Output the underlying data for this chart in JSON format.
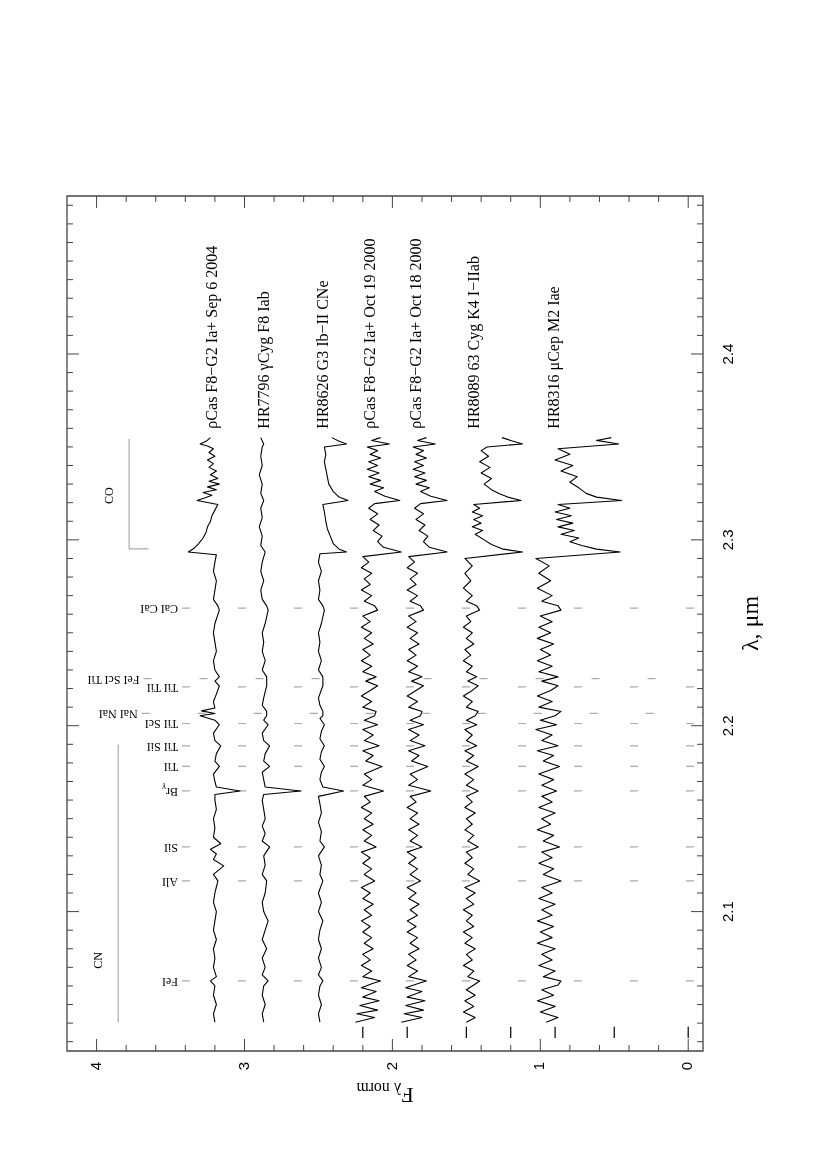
{
  "chart_data": {
    "type": "line",
    "xlabel": "F$_{λ norm}$",
    "ylabel": "λ, μm",
    "xlim": [
      4.2,
      -0.1
    ],
    "ylim": [
      2.025,
      2.485
    ],
    "xticks": [
      0,
      {
        "value": 0.2,
        "label": null
      },
      {
        "value": 0.4,
        "label": null
      },
      {
        "value": 0.6,
        "label": null
      },
      {
        "value": 0.8,
        "label": null
      },
      1,
      {
        "value": 1.2,
        "label": null
      },
      {
        "value": 1.4,
        "label": null
      },
      {
        "value": 1.6,
        "label": null
      },
      {
        "value": 1.8,
        "label": null
      },
      2,
      {
        "value": 2.2,
        "label": null
      },
      {
        "value": 2.4,
        "label": null
      },
      {
        "value": 2.6,
        "label": null
      },
      {
        "value": 2.8,
        "label": null
      },
      3,
      {
        "value": 3.2,
        "label": null
      },
      {
        "value": 3.4,
        "label": null
      },
      {
        "value": 3.6,
        "label": null
      },
      {
        "value": 3.8,
        "label": null
      },
      4
    ],
    "yticks": [
      {
        "value": 2.03,
        "label": null
      },
      {
        "value": 2.04,
        "label": null
      },
      {
        "value": 2.05,
        "label": null
      },
      {
        "value": 2.06,
        "label": null
      },
      {
        "value": 2.07,
        "label": null
      },
      {
        "value": 2.08,
        "label": null
      },
      {
        "value": 2.09,
        "label": null
      },
      2.1,
      {
        "value": 2.11,
        "label": null
      },
      {
        "value": 2.12,
        "label": null
      },
      {
        "value": 2.13,
        "label": null
      },
      {
        "value": 2.14,
        "label": null
      },
      {
        "value": 2.15,
        "label": null
      },
      {
        "value": 2.16,
        "label": null
      },
      {
        "value": 2.17,
        "label": null
      },
      {
        "value": 2.18,
        "label": null
      },
      {
        "value": 2.19,
        "label": null
      },
      2.2,
      {
        "value": 2.21,
        "label": null
      },
      {
        "value": 2.22,
        "label": null
      },
      {
        "value": 2.23,
        "label": null
      },
      {
        "value": 2.24,
        "label": null
      },
      {
        "value": 2.25,
        "label": null
      },
      {
        "value": 2.26,
        "label": null
      },
      {
        "value": 2.27,
        "label": null
      },
      {
        "value": 2.28,
        "label": null
      },
      {
        "value": 2.29,
        "label": null
      },
      2.3,
      {
        "value": 2.31,
        "label": null
      },
      {
        "value": 2.32,
        "label": null
      },
      {
        "value": 2.33,
        "label": null
      },
      {
        "value": 2.34,
        "label": null
      },
      {
        "value": 2.35,
        "label": null
      },
      {
        "value": 2.36,
        "label": null
      },
      {
        "value": 2.37,
        "label": null
      },
      {
        "value": 2.38,
        "label": null
      },
      {
        "value": 2.39,
        "label": null
      },
      2.4,
      {
        "value": 2.41,
        "label": null
      },
      {
        "value": 2.42,
        "label": null
      },
      {
        "value": 2.43,
        "label": null
      },
      {
        "value": 2.44,
        "label": null
      },
      {
        "value": 2.45,
        "label": null
      },
      {
        "value": 2.46,
        "label": null
      },
      {
        "value": 2.47,
        "label": null
      },
      {
        "value": 2.48,
        "label": null
      }
    ],
    "series": [
      {
        "name": "ρCas F8−G2 Ia+ Sep 6 2004",
        "color": "#000000",
        "x": [
          3.2,
          3.21,
          3.19,
          3.21,
          3.2,
          3.23,
          3.19,
          3.21,
          3.2,
          3.21,
          3.19,
          3.21,
          3.2,
          3.19,
          3.21,
          3.2,
          3.18,
          3.21,
          3.14,
          3.21,
          3.19,
          3.23,
          3.16,
          3.21,
          3.2,
          3.21,
          3.19,
          3.2,
          3.2,
          3.03,
          3.19,
          3.2,
          3.21,
          3.17,
          3.2,
          3.19,
          3.16,
          3.2,
          3.21,
          3.17,
          3.2,
          3.3,
          3.2,
          3.29,
          3.2,
          3.21,
          3.19,
          3.17,
          3.2,
          3.17,
          3.2,
          3.21,
          3.19,
          3.2,
          3.21,
          3.2,
          3.17,
          3.18,
          3.21,
          3.2,
          3.19,
          3.21,
          3.2,
          3.19,
          3.38,
          3.34,
          3.31,
          3.28,
          3.26,
          3.25,
          3.23,
          3.22,
          3.2,
          3.18,
          3.32,
          3.27,
          3.22,
          3.28,
          3.19,
          3.25,
          3.17,
          3.24,
          3.18,
          3.23,
          3.19,
          3.24,
          3.21,
          3.25,
          3.2,
          3.24,
          3.21,
          3.25,
          3.3,
          3.26,
          3.23
        ],
        "values": [
          2.0405,
          2.045,
          2.05,
          2.055,
          2.06,
          2.0627,
          2.065,
          2.07,
          2.075,
          2.08,
          2.085,
          2.09,
          2.095,
          2.1,
          2.105,
          2.11,
          2.1165,
          2.12,
          2.1246,
          2.128,
          2.131,
          2.1335,
          2.1365,
          2.14,
          2.145,
          2.15,
          2.155,
          2.16,
          2.163,
          2.1649,
          2.167,
          2.17,
          2.174,
          2.1781,
          2.181,
          2.185,
          2.1892,
          2.192,
          2.196,
          2.2005,
          2.203,
          2.2054,
          2.2066,
          2.208,
          2.2095,
          2.213,
          2.217,
          2.2215,
          2.224,
          2.2263,
          2.23,
          2.235,
          2.24,
          2.245,
          2.25,
          2.255,
          2.2622,
          2.2645,
          2.268,
          2.273,
          2.278,
          2.283,
          2.288,
          2.292,
          2.2935,
          2.2955,
          2.298,
          2.301,
          2.304,
          2.307,
          2.31,
          2.313,
          2.316,
          2.319,
          2.3212,
          2.3225,
          2.324,
          2.3255,
          2.327,
          2.3285,
          2.33,
          2.3315,
          2.333,
          2.335,
          2.337,
          2.339,
          2.341,
          2.343,
          2.345,
          2.347,
          2.349,
          2.3505,
          2.3516,
          2.353,
          2.355
        ]
      },
      {
        "name": "HR7796 γCyg F8 Iab",
        "color": "#000000",
        "x": [
          2.87,
          2.88,
          2.86,
          2.88,
          2.87,
          2.84,
          2.88,
          2.86,
          2.88,
          2.85,
          2.88,
          2.86,
          2.84,
          2.87,
          2.88,
          2.86,
          2.85,
          2.88,
          2.86,
          2.87,
          2.83,
          2.88,
          2.86,
          2.88,
          2.86,
          2.87,
          2.88,
          2.87,
          2.62,
          2.86,
          2.87,
          2.88,
          2.83,
          2.87,
          2.86,
          2.83,
          2.87,
          2.88,
          2.84,
          2.87,
          2.85,
          2.85,
          2.88,
          2.87,
          2.85,
          2.85,
          2.88,
          2.86,
          2.88,
          2.87,
          2.88,
          2.86,
          2.84,
          2.85,
          2.88,
          2.89,
          2.87,
          2.89,
          2.88,
          2.86,
          2.89,
          2.88,
          2.9,
          2.88,
          2.89,
          2.87,
          2.89,
          2.88,
          2.9,
          2.88,
          2.89,
          2.88,
          2.87,
          2.89
        ],
        "values": [
          2.0405,
          2.045,
          2.05,
          2.055,
          2.06,
          2.0627,
          2.066,
          2.07,
          2.075,
          2.08,
          2.085,
          2.09,
          2.095,
          2.1,
          2.105,
          2.11,
          2.1165,
          2.12,
          2.125,
          2.13,
          2.1348,
          2.138,
          2.142,
          2.146,
          2.15,
          2.155,
          2.16,
          2.163,
          2.1649,
          2.167,
          2.171,
          2.175,
          2.1781,
          2.181,
          2.185,
          2.1892,
          2.192,
          2.196,
          2.2005,
          2.203,
          2.2054,
          2.2077,
          2.211,
          2.215,
          2.2215,
          2.2263,
          2.23,
          2.235,
          2.24,
          2.245,
          2.25,
          2.255,
          2.2622,
          2.2645,
          2.268,
          2.273,
          2.278,
          2.283,
          2.288,
          2.2935,
          2.297,
          2.302,
          2.307,
          2.312,
          2.317,
          2.3212,
          2.325,
          2.33,
          2.335,
          2.34,
          2.345,
          2.35,
          2.3516,
          2.355
        ]
      },
      {
        "name": "HR8626 G3 Ib−II CNe",
        "color": "#000000",
        "x": [
          2.49,
          2.5,
          2.48,
          2.5,
          2.49,
          2.47,
          2.5,
          2.48,
          2.5,
          2.48,
          2.5,
          2.49,
          2.47,
          2.5,
          2.48,
          2.5,
          2.47,
          2.49,
          2.48,
          2.5,
          2.46,
          2.49,
          2.48,
          2.5,
          2.48,
          2.49,
          2.5,
          2.33,
          2.47,
          2.49,
          2.48,
          2.46,
          2.49,
          2.48,
          2.46,
          2.49,
          2.48,
          2.46,
          2.49,
          2.47,
          2.47,
          2.49,
          2.5,
          2.47,
          2.47,
          2.5,
          2.48,
          2.5,
          2.49,
          2.5,
          2.48,
          2.46,
          2.47,
          2.5,
          2.49,
          2.5,
          2.48,
          2.5,
          2.49,
          2.31,
          2.36,
          2.4,
          2.42,
          2.44,
          2.45,
          2.46,
          2.47,
          2.3,
          2.36,
          2.4,
          2.43,
          2.44,
          2.45,
          2.46,
          2.45,
          2.46,
          2.31,
          2.36,
          2.41
        ],
        "values": [
          2.0405,
          2.045,
          2.05,
          2.055,
          2.06,
          2.0627,
          2.066,
          2.07,
          2.075,
          2.08,
          2.085,
          2.09,
          2.095,
          2.1,
          2.105,
          2.11,
          2.1165,
          2.12,
          2.125,
          2.13,
          2.1348,
          2.138,
          2.143,
          2.148,
          2.153,
          2.158,
          2.162,
          2.1649,
          2.167,
          2.171,
          2.175,
          2.1781,
          2.182,
          2.186,
          2.1892,
          2.193,
          2.197,
          2.2005,
          2.204,
          2.2054,
          2.2077,
          2.211,
          2.215,
          2.2215,
          2.2263,
          2.23,
          2.235,
          2.24,
          2.245,
          2.25,
          2.255,
          2.2622,
          2.2645,
          2.268,
          2.273,
          2.278,
          2.283,
          2.288,
          2.2925,
          2.2935,
          2.295,
          2.298,
          2.302,
          2.306,
          2.31,
          2.315,
          2.319,
          2.3212,
          2.323,
          2.326,
          2.33,
          2.334,
          2.338,
          2.342,
          2.346,
          2.35,
          2.3516,
          2.353,
          2.355
        ]
      },
      {
        "name": "ρCas F8−G2 Ia+ Oct 19 2000",
        "color": "#000000",
        "x": [
          2.25,
          2.12,
          2.24,
          2.1,
          2.22,
          2.09,
          2.2,
          2.11,
          2.21,
          2.13,
          2.08,
          2.2,
          2.14,
          2.21,
          2.15,
          2.2,
          2.13,
          2.19,
          2.14,
          2.2,
          2.15,
          2.21,
          2.14,
          2.19,
          2.13,
          2.2,
          2.15,
          2.21,
          2.12,
          2.19,
          2.14,
          2.2,
          2.15,
          2.21,
          2.11,
          2.19,
          2.14,
          2.2,
          2.13,
          2.19,
          2.14,
          2.21,
          2.15,
          2.19,
          2.06,
          2.2,
          2.14,
          2.19,
          2.07,
          2.18,
          2.13,
          2.2,
          2.09,
          2.19,
          2.13,
          2.2,
          2.1,
          2.19,
          2.12,
          2.11,
          2.2,
          2.14,
          2.21,
          2.15,
          2.1,
          2.18,
          2.11,
          2.2,
          2.14,
          2.21,
          2.15,
          2.2,
          2.13,
          2.19,
          2.14,
          2.21,
          2.15,
          2.2,
          2.1,
          2.12,
          2.19,
          2.14,
          2.21,
          2.15,
          2.19,
          2.14,
          2.21,
          2.16,
          2.2,
          1.94,
          2.06,
          2.1,
          2.07,
          2.13,
          2.09,
          2.15,
          2.1,
          2.16,
          2.12,
          1.95,
          2.05,
          2.12,
          2.06,
          2.15,
          2.08,
          2.16,
          2.09,
          2.17,
          2.1,
          2.16,
          2.08,
          2.15,
          2.1,
          2.17,
          2.02,
          2.14,
          2.08
        ],
        "values": [
          2.0405,
          2.043,
          2.045,
          2.047,
          2.0495,
          2.052,
          2.054,
          2.057,
          2.059,
          2.0615,
          2.0627,
          2.065,
          2.068,
          2.071,
          2.074,
          2.077,
          2.08,
          2.083,
          2.086,
          2.089,
          2.092,
          2.095,
          2.098,
          2.101,
          2.104,
          2.107,
          2.11,
          2.113,
          2.1165,
          2.12,
          2.123,
          2.126,
          2.129,
          2.132,
          2.1348,
          2.138,
          2.141,
          2.144,
          2.147,
          2.15,
          2.153,
          2.156,
          2.159,
          2.162,
          2.1649,
          2.168,
          2.171,
          2.174,
          2.1781,
          2.181,
          2.184,
          2.1865,
          2.1892,
          2.192,
          2.195,
          2.198,
          2.2005,
          2.203,
          2.2054,
          2.2077,
          2.21,
          2.213,
          2.216,
          2.219,
          2.2215,
          2.224,
          2.2263,
          2.229,
          2.232,
          2.235,
          2.238,
          2.241,
          2.244,
          2.247,
          2.25,
          2.253,
          2.256,
          2.259,
          2.2622,
          2.2645,
          2.267,
          2.27,
          2.273,
          2.276,
          2.279,
          2.282,
          2.285,
          2.288,
          2.291,
          2.2935,
          2.296,
          2.299,
          2.302,
          2.305,
          2.308,
          2.311,
          2.314,
          2.317,
          2.3195,
          2.3212,
          2.3235,
          2.326,
          2.328,
          2.33,
          2.332,
          2.334,
          2.336,
          2.338,
          2.34,
          2.342,
          2.344,
          2.346,
          2.348,
          2.35,
          2.3516,
          2.3535,
          2.355
        ]
      },
      {
        "name": "ρCas F8−G2 Ia+ Oct 18 2000",
        "color": "#000000",
        "x": [
          1.94,
          1.8,
          1.92,
          1.79,
          1.91,
          1.78,
          1.9,
          1.8,
          1.91,
          1.82,
          1.77,
          1.89,
          1.83,
          1.9,
          1.84,
          1.89,
          1.82,
          1.88,
          1.83,
          1.9,
          1.84,
          1.9,
          1.83,
          1.88,
          1.82,
          1.89,
          1.84,
          1.9,
          1.81,
          1.88,
          1.83,
          1.89,
          1.84,
          1.9,
          1.8,
          1.88,
          1.83,
          1.89,
          1.82,
          1.88,
          1.83,
          1.9,
          1.84,
          1.88,
          1.74,
          1.89,
          1.83,
          1.88,
          1.76,
          1.87,
          1.82,
          1.89,
          1.78,
          1.88,
          1.82,
          1.89,
          1.79,
          1.88,
          1.81,
          1.8,
          1.89,
          1.83,
          1.9,
          1.84,
          1.79,
          1.87,
          1.8,
          1.89,
          1.83,
          1.9,
          1.84,
          1.89,
          1.82,
          1.88,
          1.83,
          1.9,
          1.84,
          1.89,
          1.79,
          1.81,
          1.88,
          1.83,
          1.9,
          1.84,
          1.88,
          1.83,
          1.9,
          1.85,
          1.89,
          1.63,
          1.75,
          1.79,
          1.76,
          1.82,
          1.78,
          1.84,
          1.79,
          1.85,
          1.81,
          1.63,
          1.74,
          1.81,
          1.75,
          1.84,
          1.77,
          1.85,
          1.78,
          1.86,
          1.79,
          1.85,
          1.77,
          1.84,
          1.79,
          1.86,
          1.71,
          1.83,
          1.77
        ],
        "values": [
          2.0405,
          2.043,
          2.045,
          2.047,
          2.0495,
          2.052,
          2.054,
          2.057,
          2.059,
          2.0615,
          2.0627,
          2.065,
          2.068,
          2.071,
          2.074,
          2.077,
          2.08,
          2.083,
          2.086,
          2.089,
          2.092,
          2.095,
          2.098,
          2.101,
          2.104,
          2.107,
          2.11,
          2.113,
          2.1165,
          2.12,
          2.123,
          2.126,
          2.129,
          2.132,
          2.1348,
          2.138,
          2.141,
          2.144,
          2.147,
          2.15,
          2.153,
          2.156,
          2.159,
          2.162,
          2.1649,
          2.168,
          2.171,
          2.174,
          2.1781,
          2.181,
          2.184,
          2.1865,
          2.1892,
          2.192,
          2.195,
          2.198,
          2.2005,
          2.203,
          2.2054,
          2.2077,
          2.21,
          2.213,
          2.216,
          2.219,
          2.2215,
          2.224,
          2.2263,
          2.229,
          2.232,
          2.235,
          2.238,
          2.241,
          2.244,
          2.247,
          2.25,
          2.253,
          2.256,
          2.259,
          2.2622,
          2.2645,
          2.267,
          2.27,
          2.273,
          2.276,
          2.279,
          2.282,
          2.285,
          2.288,
          2.291,
          2.2935,
          2.296,
          2.299,
          2.302,
          2.305,
          2.308,
          2.311,
          2.314,
          2.317,
          2.3195,
          2.3212,
          2.3235,
          2.326,
          2.328,
          2.33,
          2.332,
          2.334,
          2.336,
          2.338,
          2.34,
          2.342,
          2.344,
          2.346,
          2.348,
          2.35,
          2.3516,
          2.3535,
          2.355
        ]
      },
      {
        "name": "HR8089 63 Cyg K4 I−IIab",
        "color": "#000000",
        "x": [
          1.5,
          1.44,
          1.52,
          1.45,
          1.51,
          1.44,
          1.5,
          1.45,
          1.41,
          1.49,
          1.45,
          1.52,
          1.46,
          1.5,
          1.44,
          1.51,
          1.46,
          1.52,
          1.45,
          1.5,
          1.46,
          1.52,
          1.45,
          1.5,
          1.44,
          1.51,
          1.41,
          1.49,
          1.45,
          1.51,
          1.46,
          1.5,
          1.42,
          1.49,
          1.45,
          1.51,
          1.46,
          1.5,
          1.44,
          1.51,
          1.46,
          1.5,
          1.42,
          1.5,
          1.45,
          1.51,
          1.42,
          1.5,
          1.45,
          1.51,
          1.43,
          1.5,
          1.46,
          1.51,
          1.43,
          1.5,
          1.44,
          1.42,
          1.5,
          1.46,
          1.52,
          1.46,
          1.42,
          1.49,
          1.43,
          1.5,
          1.46,
          1.52,
          1.47,
          1.51,
          1.45,
          1.5,
          1.46,
          1.52,
          1.47,
          1.5,
          1.41,
          1.43,
          1.5,
          1.46,
          1.52,
          1.47,
          1.51,
          1.46,
          1.51,
          1.12,
          1.25,
          1.33,
          1.38,
          1.44,
          1.39,
          1.46,
          1.4,
          1.45,
          1.39,
          1.46,
          1.41,
          1.45,
          1.13,
          1.22,
          1.28,
          1.33,
          1.38,
          1.33,
          1.4,
          1.34,
          1.41,
          1.35,
          1.4,
          1.36,
          1.12,
          1.2,
          1.26
        ],
        "values": [
          2.0405,
          2.043,
          2.046,
          2.049,
          2.052,
          2.055,
          2.058,
          2.0605,
          2.0627,
          2.065,
          2.068,
          2.071,
          2.074,
          2.077,
          2.08,
          2.083,
          2.086,
          2.089,
          2.092,
          2.095,
          2.098,
          2.101,
          2.104,
          2.107,
          2.11,
          2.113,
          2.1165,
          2.12,
          2.123,
          2.126,
          2.129,
          2.132,
          2.1348,
          2.138,
          2.141,
          2.144,
          2.147,
          2.15,
          2.153,
          2.156,
          2.159,
          2.162,
          2.1649,
          2.168,
          2.171,
          2.174,
          2.1781,
          2.181,
          2.184,
          2.1865,
          2.1892,
          2.192,
          2.195,
          2.198,
          2.2005,
          2.203,
          2.2054,
          2.2077,
          2.21,
          2.213,
          2.216,
          2.219,
          2.2215,
          2.224,
          2.2263,
          2.229,
          2.232,
          2.235,
          2.238,
          2.241,
          2.244,
          2.247,
          2.25,
          2.253,
          2.256,
          2.259,
          2.2622,
          2.2645,
          2.267,
          2.27,
          2.274,
          2.278,
          2.282,
          2.286,
          2.29,
          2.2935,
          2.295,
          2.2975,
          2.3,
          2.303,
          2.305,
          2.307,
          2.309,
          2.311,
          2.313,
          2.315,
          2.317,
          2.319,
          2.3212,
          2.323,
          2.325,
          2.327,
          2.33,
          2.333,
          2.336,
          2.339,
          2.342,
          2.345,
          2.348,
          2.35,
          2.3516,
          2.3535,
          2.355
        ]
      },
      {
        "name": "HR8316 μCep M2 Iae",
        "color": "#000000",
        "x": [
          0.96,
          0.88,
          1.0,
          0.9,
          1.02,
          0.91,
          0.99,
          0.88,
          0.86,
          0.98,
          0.9,
          1.01,
          0.92,
          0.99,
          0.9,
          1.02,
          0.92,
          1.0,
          0.91,
          1.02,
          0.92,
          0.99,
          0.9,
          1.01,
          0.92,
          0.99,
          0.86,
          0.98,
          0.91,
          1.01,
          0.92,
          0.99,
          0.87,
          0.98,
          0.91,
          1.02,
          0.93,
          0.99,
          0.9,
          1.01,
          0.92,
          0.99,
          0.89,
          0.99,
          0.91,
          1.01,
          0.87,
          0.98,
          0.91,
          1.02,
          0.88,
          0.99,
          0.92,
          1.03,
          0.89,
          1.0,
          0.9,
          0.86,
          1.01,
          0.92,
          1.02,
          0.93,
          0.88,
          0.99,
          0.88,
          1.01,
          0.92,
          1.02,
          0.93,
          1.0,
          0.91,
          1.02,
          0.93,
          1.01,
          0.92,
          1.0,
          0.86,
          0.88,
          0.99,
          0.92,
          1.02,
          0.93,
          1.01,
          0.94,
          1.03,
          0.46,
          0.62,
          0.72,
          0.8,
          0.74,
          0.86,
          0.77,
          0.88,
          0.78,
          0.89,
          0.79,
          0.9,
          0.8,
          0.88,
          0.45,
          0.62,
          0.69,
          0.74,
          0.8,
          0.75,
          0.86,
          0.78,
          0.9,
          0.8,
          0.88,
          0.47,
          0.62,
          0.52
        ],
        "values": [
          2.0405,
          2.043,
          2.046,
          2.049,
          2.052,
          2.055,
          2.058,
          2.0605,
          2.0627,
          2.065,
          2.068,
          2.071,
          2.074,
          2.077,
          2.08,
          2.083,
          2.086,
          2.089,
          2.092,
          2.095,
          2.098,
          2.101,
          2.104,
          2.107,
          2.11,
          2.113,
          2.1165,
          2.12,
          2.123,
          2.126,
          2.129,
          2.132,
          2.1348,
          2.138,
          2.141,
          2.144,
          2.147,
          2.15,
          2.153,
          2.156,
          2.159,
          2.162,
          2.1649,
          2.168,
          2.171,
          2.174,
          2.1781,
          2.181,
          2.184,
          2.1865,
          2.1892,
          2.192,
          2.195,
          2.198,
          2.2005,
          2.203,
          2.2054,
          2.2077,
          2.21,
          2.213,
          2.216,
          2.219,
          2.2215,
          2.224,
          2.2263,
          2.229,
          2.232,
          2.235,
          2.238,
          2.241,
          2.244,
          2.247,
          2.25,
          2.253,
          2.256,
          2.259,
          2.2622,
          2.2645,
          2.267,
          2.27,
          2.274,
          2.278,
          2.282,
          2.286,
          2.29,
          2.2935,
          2.295,
          2.297,
          2.299,
          2.301,
          2.303,
          2.305,
          2.307,
          2.309,
          2.311,
          2.313,
          2.315,
          2.317,
          2.319,
          2.3212,
          2.323,
          2.325,
          2.328,
          2.331,
          2.334,
          2.337,
          2.34,
          2.343,
          2.346,
          2.349,
          2.3516,
          2.3535,
          2.355
        ]
      },
      {
        "color": "#000000",
        "x": [
          2.2,
          2.2
        ],
        "values": [
          2.032,
          2.038
        ]
      },
      {
        "color": "#000000",
        "x": [
          1.9,
          1.9
        ],
        "values": [
          2.032,
          2.038
        ]
      },
      {
        "color": "#000000",
        "x": [
          1.5,
          1.5
        ],
        "values": [
          2.032,
          2.038
        ]
      },
      {
        "color": "#000000",
        "x": [
          1.2,
          1.2
        ],
        "values": [
          2.032,
          2.038
        ]
      },
      {
        "color": "#000000",
        "x": [
          0.9,
          0.9
        ],
        "values": [
          2.032,
          2.038
        ]
      },
      {
        "color": "#000000",
        "x": [
          0.5,
          0.5
        ],
        "values": [
          2.032,
          2.038
        ]
      },
      {
        "color": "#000000",
        "x": [
          0,
          0
        ],
        "values": [
          2.032,
          2.038
        ]
      },
      {
        "color": "#aaaaaa",
        "x": [
          3.854,
          3.854
        ],
        "values": [
          2.0405,
          2.1898
        ]
      },
      {
        "color": "#aaaaaa",
        "x": [
          3.65,
          3.78,
          3.78
        ],
        "values": [
          2.2952,
          2.2952,
          2.3543
        ]
      }
    ],
    "ref_lines": [
      {
        "axis": "y",
        "value": 2.0627,
        "label": "FeI",
        "color": "#aaaaaa",
        "line_style": "dashed"
      },
      {
        "axis": "y",
        "value": 2.1165,
        "label": "AlI",
        "color": "#aaaaaa",
        "line_style": "dashed"
      },
      {
        "axis": "y",
        "value": 2.1348,
        "label": "SiI",
        "color": "#aaaaaa",
        "line_style": "dashed"
      },
      {
        "axis": "y",
        "value": 2.1649,
        "label": "Br$_{γ}$",
        "color": "#aaaaaa",
        "line_style": "dashed"
      },
      {
        "axis": "y",
        "value": 2.1781,
        "label": "TiI",
        "color": "#aaaaaa",
        "line_style": "dashed"
      },
      {
        "axis": "y",
        "value": 2.1892,
        "label": "TiI SiI",
        "color": "#aaaaaa",
        "line_style": "dashed"
      },
      {
        "axis": "y",
        "value": 2.2012,
        "label": "TiI ScI",
        "color": "#aaaaaa",
        "line_style": "dashed"
      },
      {
        "axis": "y",
        "value": 2.2066,
        "label": "NaI NaI",
        "color": "#aaaaaa",
        "line_style": "dashed"
      },
      {
        "axis": "y",
        "value": 2.2209,
        "label": "TiI TiI",
        "color": "#aaaaaa",
        "line_style": "dashed"
      },
      {
        "axis": "y",
        "value": 2.2253,
        "label": "FeI ScI TiI",
        "color": "#aaaaaa",
        "line_style": "dashed"
      },
      {
        "axis": "y",
        "value": 2.2633,
        "label": "CaI CaI",
        "color": "#aaaaaa",
        "line_style": "dashed"
      }
    ],
    "annotations": [
      {
        "text": "CN",
        "x": 3.854,
        "y": 2.0737
      },
      {
        "text": "CO",
        "x": 3.78,
        "y": 2.3238
      }
    ]
  }
}
